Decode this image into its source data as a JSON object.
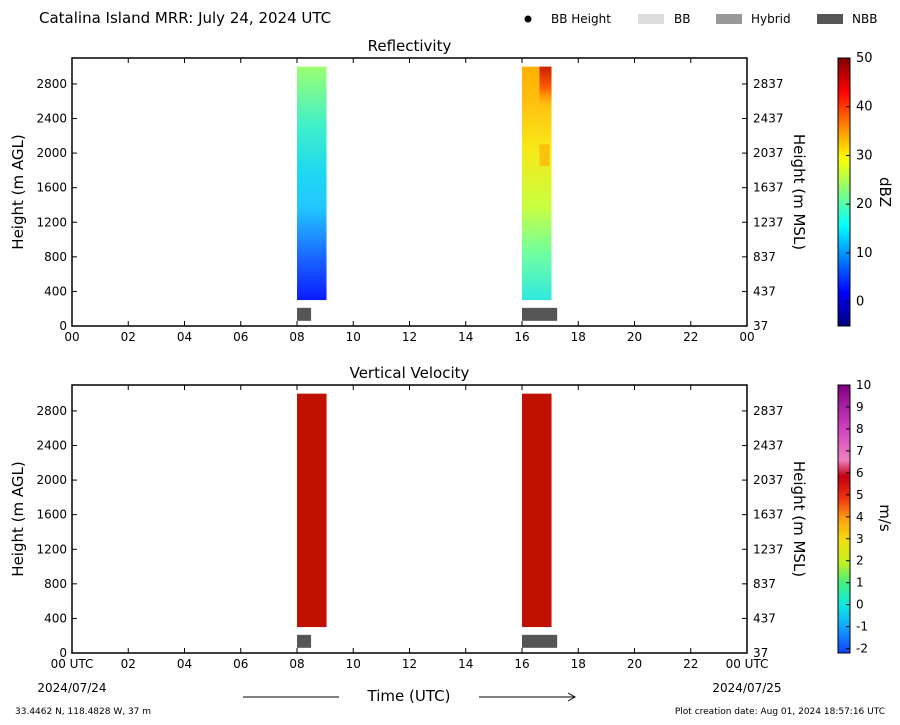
{
  "header": {
    "title": "Catalina Island MRR:  July 24, 2024 UTC",
    "legend": [
      {
        "label": "BB Height",
        "marker": "dot",
        "color": "#000000"
      },
      {
        "label": "BB",
        "marker": "box",
        "color": "#dcdcdc"
      },
      {
        "label": "Hybrid",
        "marker": "box",
        "color": "#999999"
      },
      {
        "label": "NBB",
        "marker": "box",
        "color": "#555555"
      }
    ]
  },
  "footer": {
    "location": "33.4462 N, 118.4828 W, 37 m",
    "creation": "Plot creation date: Aug 01, 2024 18:57:16 UTC",
    "xlabel": "Time (UTC)",
    "date_start": "2024/07/24",
    "date_end": "2024/07/25"
  },
  "chart_data": [
    {
      "type": "heatmap",
      "title": "Reflectivity",
      "ylabel": "Height (m AGL)",
      "y2label": "Height (m MSL)",
      "xlim": [
        0,
        24
      ],
      "ylim": [
        0,
        3100
      ],
      "xticks": [
        "00",
        "02",
        "04",
        "06",
        "08",
        "10",
        "12",
        "14",
        "16",
        "18",
        "20",
        "22",
        "00"
      ],
      "yticks": [
        0,
        400,
        800,
        1200,
        1600,
        2000,
        2400,
        2800
      ],
      "y2ticks": [
        37,
        437,
        837,
        1237,
        1637,
        2037,
        2437,
        2837
      ],
      "colorbar": {
        "label": "dBZ",
        "range": [
          -5,
          50
        ],
        "ticks": [
          0,
          10,
          20,
          30,
          40,
          50
        ],
        "scheme": "jet"
      },
      "data_blocks": [
        {
          "x_start": 8.0,
          "x_end": 9.05,
          "y_start": 300,
          "y_end": 3000,
          "dbz_bottom": 0,
          "dbz_top": 15
        },
        {
          "x_start": 16.0,
          "x_end": 17.05,
          "y_start": 300,
          "y_end": 3000,
          "dbz_bottom": 15,
          "dbz_top": 33
        }
      ],
      "bright_band_flags": [
        {
          "class": "NBB",
          "x_start": 8.0,
          "x_end": 8.5
        },
        {
          "class": "NBB",
          "x_start": 16.0,
          "x_end": 17.25
        }
      ]
    },
    {
      "type": "heatmap",
      "title": "Vertical Velocity",
      "ylabel": "Height (m AGL)",
      "y2label": "Height (m MSL)",
      "xlim": [
        0,
        24
      ],
      "ylim": [
        0,
        3100
      ],
      "xticks": [
        "00 UTC",
        "02",
        "04",
        "06",
        "08",
        "10",
        "12",
        "14",
        "16",
        "18",
        "20",
        "22",
        "00 UTC"
      ],
      "yticks": [
        0,
        400,
        800,
        1200,
        1600,
        2000,
        2400,
        2800
      ],
      "y2ticks": [
        37,
        437,
        837,
        1237,
        1637,
        2037,
        2437,
        2837
      ],
      "colorbar": {
        "label": "m/s",
        "range": [
          -2.2,
          10
        ],
        "ticks": [
          -2,
          -1,
          0,
          1,
          2,
          3,
          4,
          5,
          6,
          7,
          8,
          9,
          10
        ]
      },
      "data_blocks": [
        {
          "x_start": 8.0,
          "x_end": 9.05,
          "y_start": 300,
          "y_end": 3000,
          "velocity": 6.2
        },
        {
          "x_start": 16.0,
          "x_end": 17.05,
          "y_start": 300,
          "y_end": 3000,
          "velocity": 6.2
        }
      ],
      "bright_band_flags": [
        {
          "class": "NBB",
          "x_start": 8.0,
          "x_end": 8.5
        },
        {
          "class": "NBB",
          "x_start": 16.0,
          "x_end": 17.25
        }
      ]
    }
  ]
}
